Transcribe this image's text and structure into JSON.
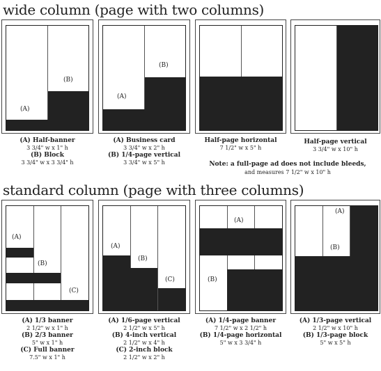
{
  "sections": {
    "wide": "wide column (page with two columns)",
    "standard": "standard column (page with three columns)"
  },
  "labels": {
    "A": "(A)",
    "B": "(B)",
    "C": "(C)"
  },
  "wide_captions": [
    {
      "lines": [
        {
          "t": "(A) Half-banner",
          "s": "3 3/4\" w x 1\" h"
        },
        {
          "t": "(B) Block",
          "s": "3 3/4\" w x 3 3/4\" h"
        }
      ]
    },
    {
      "lines": [
        {
          "t": "(A) Business card",
          "s": "3 3/4\" w x 2\" h"
        },
        {
          "t": "(B) 1/4-page vertical",
          "s": "3 3/4\" w x 5\" h"
        }
      ]
    },
    {
      "lines": [
        {
          "t": "Half-page horizontal",
          "s": "7 1/2\" w x 5\" h"
        }
      ]
    },
    {
      "lines": [
        {
          "t": "Half-page vertical",
          "s": "3 3/4\" w x 10\" h"
        }
      ]
    }
  ],
  "note": {
    "text": "Note: a full-page ad does not include bleeds,",
    "sub": "and measures 7 1/2\" w x 10\" h"
  },
  "standard_captions": [
    {
      "lines": [
        {
          "t": "(A) 1/3 banner",
          "s": "2 1/2\" w x 1\" h"
        },
        {
          "t": "(B) 2/3 banner",
          "s": "5\" w x 1\" h"
        },
        {
          "t": "(C) Full banner",
          "s": "7.5\" w x 1\" h"
        }
      ]
    },
    {
      "lines": [
        {
          "t": "(A) 1/6-page vertical",
          "s": "2 1/2\" w x 5\" h"
        },
        {
          "t": "(B) 4-inch vertical",
          "s": "2 1/2\" w x 4\" h"
        },
        {
          "t": "(C) 2-inch block",
          "s": "2 1/2\" w x 2\" h"
        }
      ]
    },
    {
      "lines": [
        {
          "t": "(A) 1/4-page banner",
          "s": "7 1/2\" w x 2 1/2\" h"
        },
        {
          "t": "(B) 1/4-page horizontal",
          "s": "5\" w x 3 3/4\" h"
        }
      ]
    },
    {
      "lines": [
        {
          "t": "(A) 1/3-page vertical",
          "s": "2 1/2\" w x 10\" h"
        },
        {
          "t": "(B) 1/3-page block",
          "s": "5\" w x 5\" h"
        }
      ]
    }
  ]
}
